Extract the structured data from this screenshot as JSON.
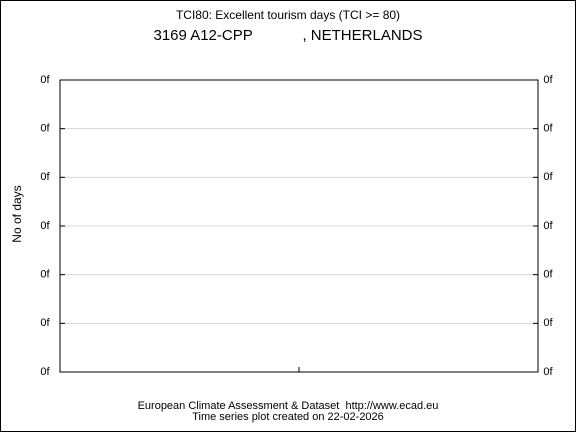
{
  "chart_data": {
    "type": "line",
    "title": "TCI80: Excellent tourism days (TCI >= 80)",
    "subtitle": "3169 A12-CPP            , NETHERLANDS",
    "y_label": "No of days",
    "ylim": [
      0,
      6
    ],
    "yticks": [
      {
        "value": 0,
        "label": "0f"
      },
      {
        "value": 1,
        "label": "0f"
      },
      {
        "value": 2,
        "label": "0f"
      },
      {
        "value": 3,
        "label": "0f"
      },
      {
        "value": 4,
        "label": "0f"
      },
      {
        "value": 5,
        "label": "0f"
      },
      {
        "value": 6,
        "label": "0f"
      }
    ],
    "grid": true,
    "footer": [
      "European Climate Assessment & Dataset  http://www.ecad.eu",
      "Time series plot created on 22-02-2026"
    ]
  }
}
